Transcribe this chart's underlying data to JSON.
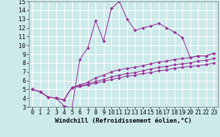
{
  "background_color": "#cceaea",
  "grid_color": "#ffffff",
  "line_color": "#993399",
  "marker": "D",
  "markersize": 2.0,
  "linewidth": 0.8,
  "xlabel": "Windchill (Refroidissement éolien,°C)",
  "xlabel_fontsize": 6.5,
  "tick_fontsize": 6.0,
  "xlim": [
    -0.5,
    23.5
  ],
  "ylim": [
    3,
    15
  ],
  "yticks": [
    3,
    4,
    5,
    6,
    7,
    8,
    9,
    10,
    11,
    12,
    13,
    14,
    15
  ],
  "xticks": [
    0,
    1,
    2,
    3,
    4,
    5,
    6,
    7,
    8,
    9,
    10,
    11,
    12,
    13,
    14,
    15,
    16,
    17,
    18,
    19,
    20,
    21,
    22,
    23
  ],
  "series": [
    [
      5.0,
      4.7,
      4.1,
      4.0,
      3.1,
      2.9,
      8.4,
      9.7,
      12.8,
      10.5,
      14.2,
      15.0,
      13.0,
      11.7,
      12.0,
      12.2,
      12.5,
      12.0,
      11.5,
      10.9,
      8.6,
      8.8,
      8.8,
      9.1
    ],
    [
      5.0,
      4.7,
      4.1,
      4.0,
      3.8,
      5.2,
      5.5,
      5.8,
      6.3,
      6.6,
      7.0,
      7.2,
      7.4,
      7.5,
      7.7,
      7.9,
      8.1,
      8.2,
      8.4,
      8.5,
      8.6,
      8.8,
      8.8,
      9.1
    ],
    [
      5.0,
      4.7,
      4.1,
      4.0,
      3.8,
      5.2,
      5.4,
      5.6,
      5.9,
      6.1,
      6.4,
      6.6,
      6.8,
      6.9,
      7.1,
      7.3,
      7.5,
      7.6,
      7.8,
      7.9,
      8.0,
      8.2,
      8.3,
      8.5
    ],
    [
      5.0,
      4.7,
      4.1,
      4.0,
      3.8,
      5.2,
      5.3,
      5.5,
      5.7,
      5.9,
      6.1,
      6.3,
      6.5,
      6.6,
      6.8,
      6.9,
      7.1,
      7.2,
      7.4,
      7.5,
      7.6,
      7.7,
      7.8,
      8.0
    ]
  ]
}
